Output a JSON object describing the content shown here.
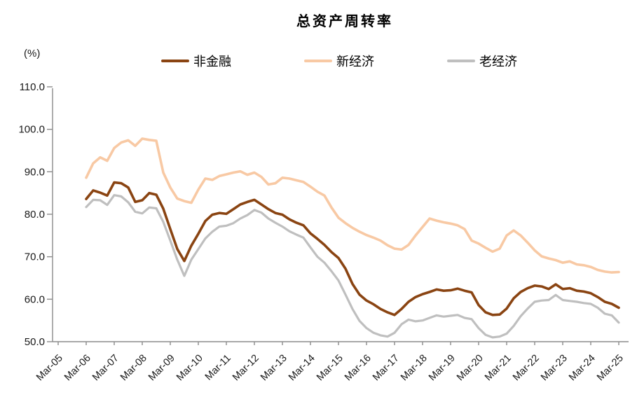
{
  "page": {
    "title": "总资产周转率",
    "unit_label": "(%)"
  },
  "legend": {
    "items": [
      {
        "label": "非金融",
        "color": "#8A4412"
      },
      {
        "label": "新经济",
        "color": "#F8C9A4"
      },
      {
        "label": "老经济",
        "color": "#BFBFBF"
      }
    ]
  },
  "chart_data": {
    "type": "line",
    "title": "总资产周转率",
    "ylabel": "(%)",
    "ylim": [
      50,
      110
    ],
    "y_ticks": [
      50,
      60,
      70,
      80,
      90,
      100,
      110
    ],
    "grid": false,
    "legend_position": "top",
    "x_axis_tick_labels": [
      "Mar-05",
      "Mar-06",
      "Mar-07",
      "Mar-08",
      "Mar-09",
      "Mar-10",
      "Mar-11",
      "Mar-12",
      "Mar-13",
      "Mar-14",
      "Mar-15",
      "Mar-16",
      "Mar-17",
      "Mar-18",
      "Mar-19",
      "Mar-20",
      "Mar-21",
      "Mar-22",
      "Mar-23",
      "Mar-24",
      "Mar-25"
    ],
    "x": [
      "Mar-06",
      "Jun-06",
      "Sep-06",
      "Dec-06",
      "Mar-07",
      "Jun-07",
      "Sep-07",
      "Dec-07",
      "Mar-08",
      "Jun-08",
      "Sep-08",
      "Dec-08",
      "Mar-09",
      "Jun-09",
      "Sep-09",
      "Dec-09",
      "Mar-10",
      "Jun-10",
      "Sep-10",
      "Dec-10",
      "Mar-11",
      "Jun-11",
      "Sep-11",
      "Dec-11",
      "Mar-12",
      "Jun-12",
      "Sep-12",
      "Dec-12",
      "Mar-13",
      "Jun-13",
      "Sep-13",
      "Dec-13",
      "Mar-14",
      "Jun-14",
      "Sep-14",
      "Dec-14",
      "Mar-15",
      "Jun-15",
      "Sep-15",
      "Dec-15",
      "Mar-16",
      "Jun-16",
      "Sep-16",
      "Dec-16",
      "Mar-17",
      "Jun-17",
      "Sep-17",
      "Dec-17",
      "Mar-18",
      "Jun-18",
      "Sep-18",
      "Dec-18",
      "Mar-19",
      "Jun-19",
      "Sep-19",
      "Dec-19",
      "Mar-20",
      "Jun-20",
      "Sep-20",
      "Dec-20",
      "Mar-21",
      "Jun-21",
      "Sep-21",
      "Dec-21",
      "Mar-22",
      "Jun-22",
      "Sep-22",
      "Dec-22",
      "Mar-23",
      "Jun-23",
      "Sep-23",
      "Dec-23",
      "Mar-24",
      "Jun-24",
      "Sep-24",
      "Dec-24",
      "Mar-25"
    ],
    "series": [
      {
        "name": "非金融",
        "color": "#8A4412",
        "width": 3.6,
        "values": [
          83.6,
          85.6,
          85.1,
          84.4,
          87.5,
          87.3,
          86.3,
          82.9,
          83.3,
          85.0,
          84.6,
          81.3,
          76.5,
          71.8,
          69.0,
          72.6,
          75.4,
          78.4,
          79.9,
          80.3,
          80.1,
          81.2,
          82.3,
          82.9,
          83.4,
          82.3,
          81.2,
          80.3,
          79.9,
          78.8,
          78.0,
          77.4,
          75.5,
          74.2,
          72.8,
          71.1,
          69.7,
          67.2,
          63.6,
          61.1,
          59.7,
          58.8,
          57.7,
          56.9,
          56.3,
          57.7,
          59.4,
          60.5,
          61.2,
          61.7,
          62.3,
          62.0,
          62.1,
          62.5,
          62.0,
          61.6,
          58.6,
          56.9,
          56.3,
          56.4,
          57.8,
          60.2,
          61.7,
          62.6,
          63.2,
          63.0,
          62.4,
          63.5,
          62.4,
          62.6,
          62.0,
          61.8,
          61.4,
          60.5,
          59.4,
          58.9,
          58.0
        ]
      },
      {
        "name": "新经济",
        "color": "#F8C9A4",
        "width": 3.6,
        "values": [
          88.6,
          92.0,
          93.4,
          92.6,
          95.6,
          96.9,
          97.4,
          96.1,
          97.8,
          97.5,
          97.3,
          89.8,
          86.3,
          83.7,
          83.1,
          82.7,
          85.8,
          88.4,
          88.1,
          89.0,
          89.4,
          89.8,
          90.1,
          89.3,
          89.8,
          88.8,
          87.0,
          87.3,
          88.6,
          88.4,
          88.0,
          87.6,
          86.5,
          85.3,
          84.4,
          81.6,
          79.2,
          77.9,
          76.8,
          75.9,
          75.1,
          74.5,
          73.8,
          72.7,
          71.9,
          71.7,
          72.8,
          75.0,
          77.0,
          79.0,
          78.5,
          78.1,
          77.8,
          77.4,
          76.5,
          73.8,
          73.1,
          72.1,
          71.2,
          71.9,
          75.0,
          76.2,
          75.0,
          73.3,
          71.5,
          70.1,
          69.6,
          69.2,
          68.6,
          68.9,
          68.2,
          68.0,
          67.6,
          66.9,
          66.5,
          66.3,
          66.4
        ]
      },
      {
        "name": "老经济",
        "color": "#BFBFBF",
        "width": 3.2,
        "values": [
          81.7,
          83.4,
          83.3,
          82.2,
          84.5,
          84.2,
          82.8,
          80.6,
          80.2,
          81.6,
          81.4,
          78.2,
          73.8,
          69.3,
          65.5,
          69.3,
          71.8,
          74.3,
          75.9,
          77.1,
          77.3,
          77.9,
          79.0,
          79.8,
          81.0,
          80.4,
          79.0,
          78.0,
          77.1,
          76.0,
          75.2,
          74.5,
          72.2,
          70.0,
          68.6,
          66.6,
          64.4,
          61.1,
          57.7,
          54.9,
          53.2,
          52.1,
          51.5,
          51.2,
          52.1,
          54.1,
          55.2,
          54.8,
          55.0,
          55.6,
          56.2,
          55.9,
          56.1,
          56.3,
          55.6,
          55.3,
          53.2,
          51.6,
          51.0,
          51.2,
          51.9,
          53.7,
          56.0,
          57.8,
          59.4,
          59.7,
          59.8,
          61.0,
          59.8,
          59.6,
          59.4,
          59.1,
          58.9,
          58.0,
          56.6,
          56.2,
          54.5
        ]
      }
    ],
    "axis_color": "#8C8C8C",
    "tick_label_color": "#1a1a1a"
  }
}
